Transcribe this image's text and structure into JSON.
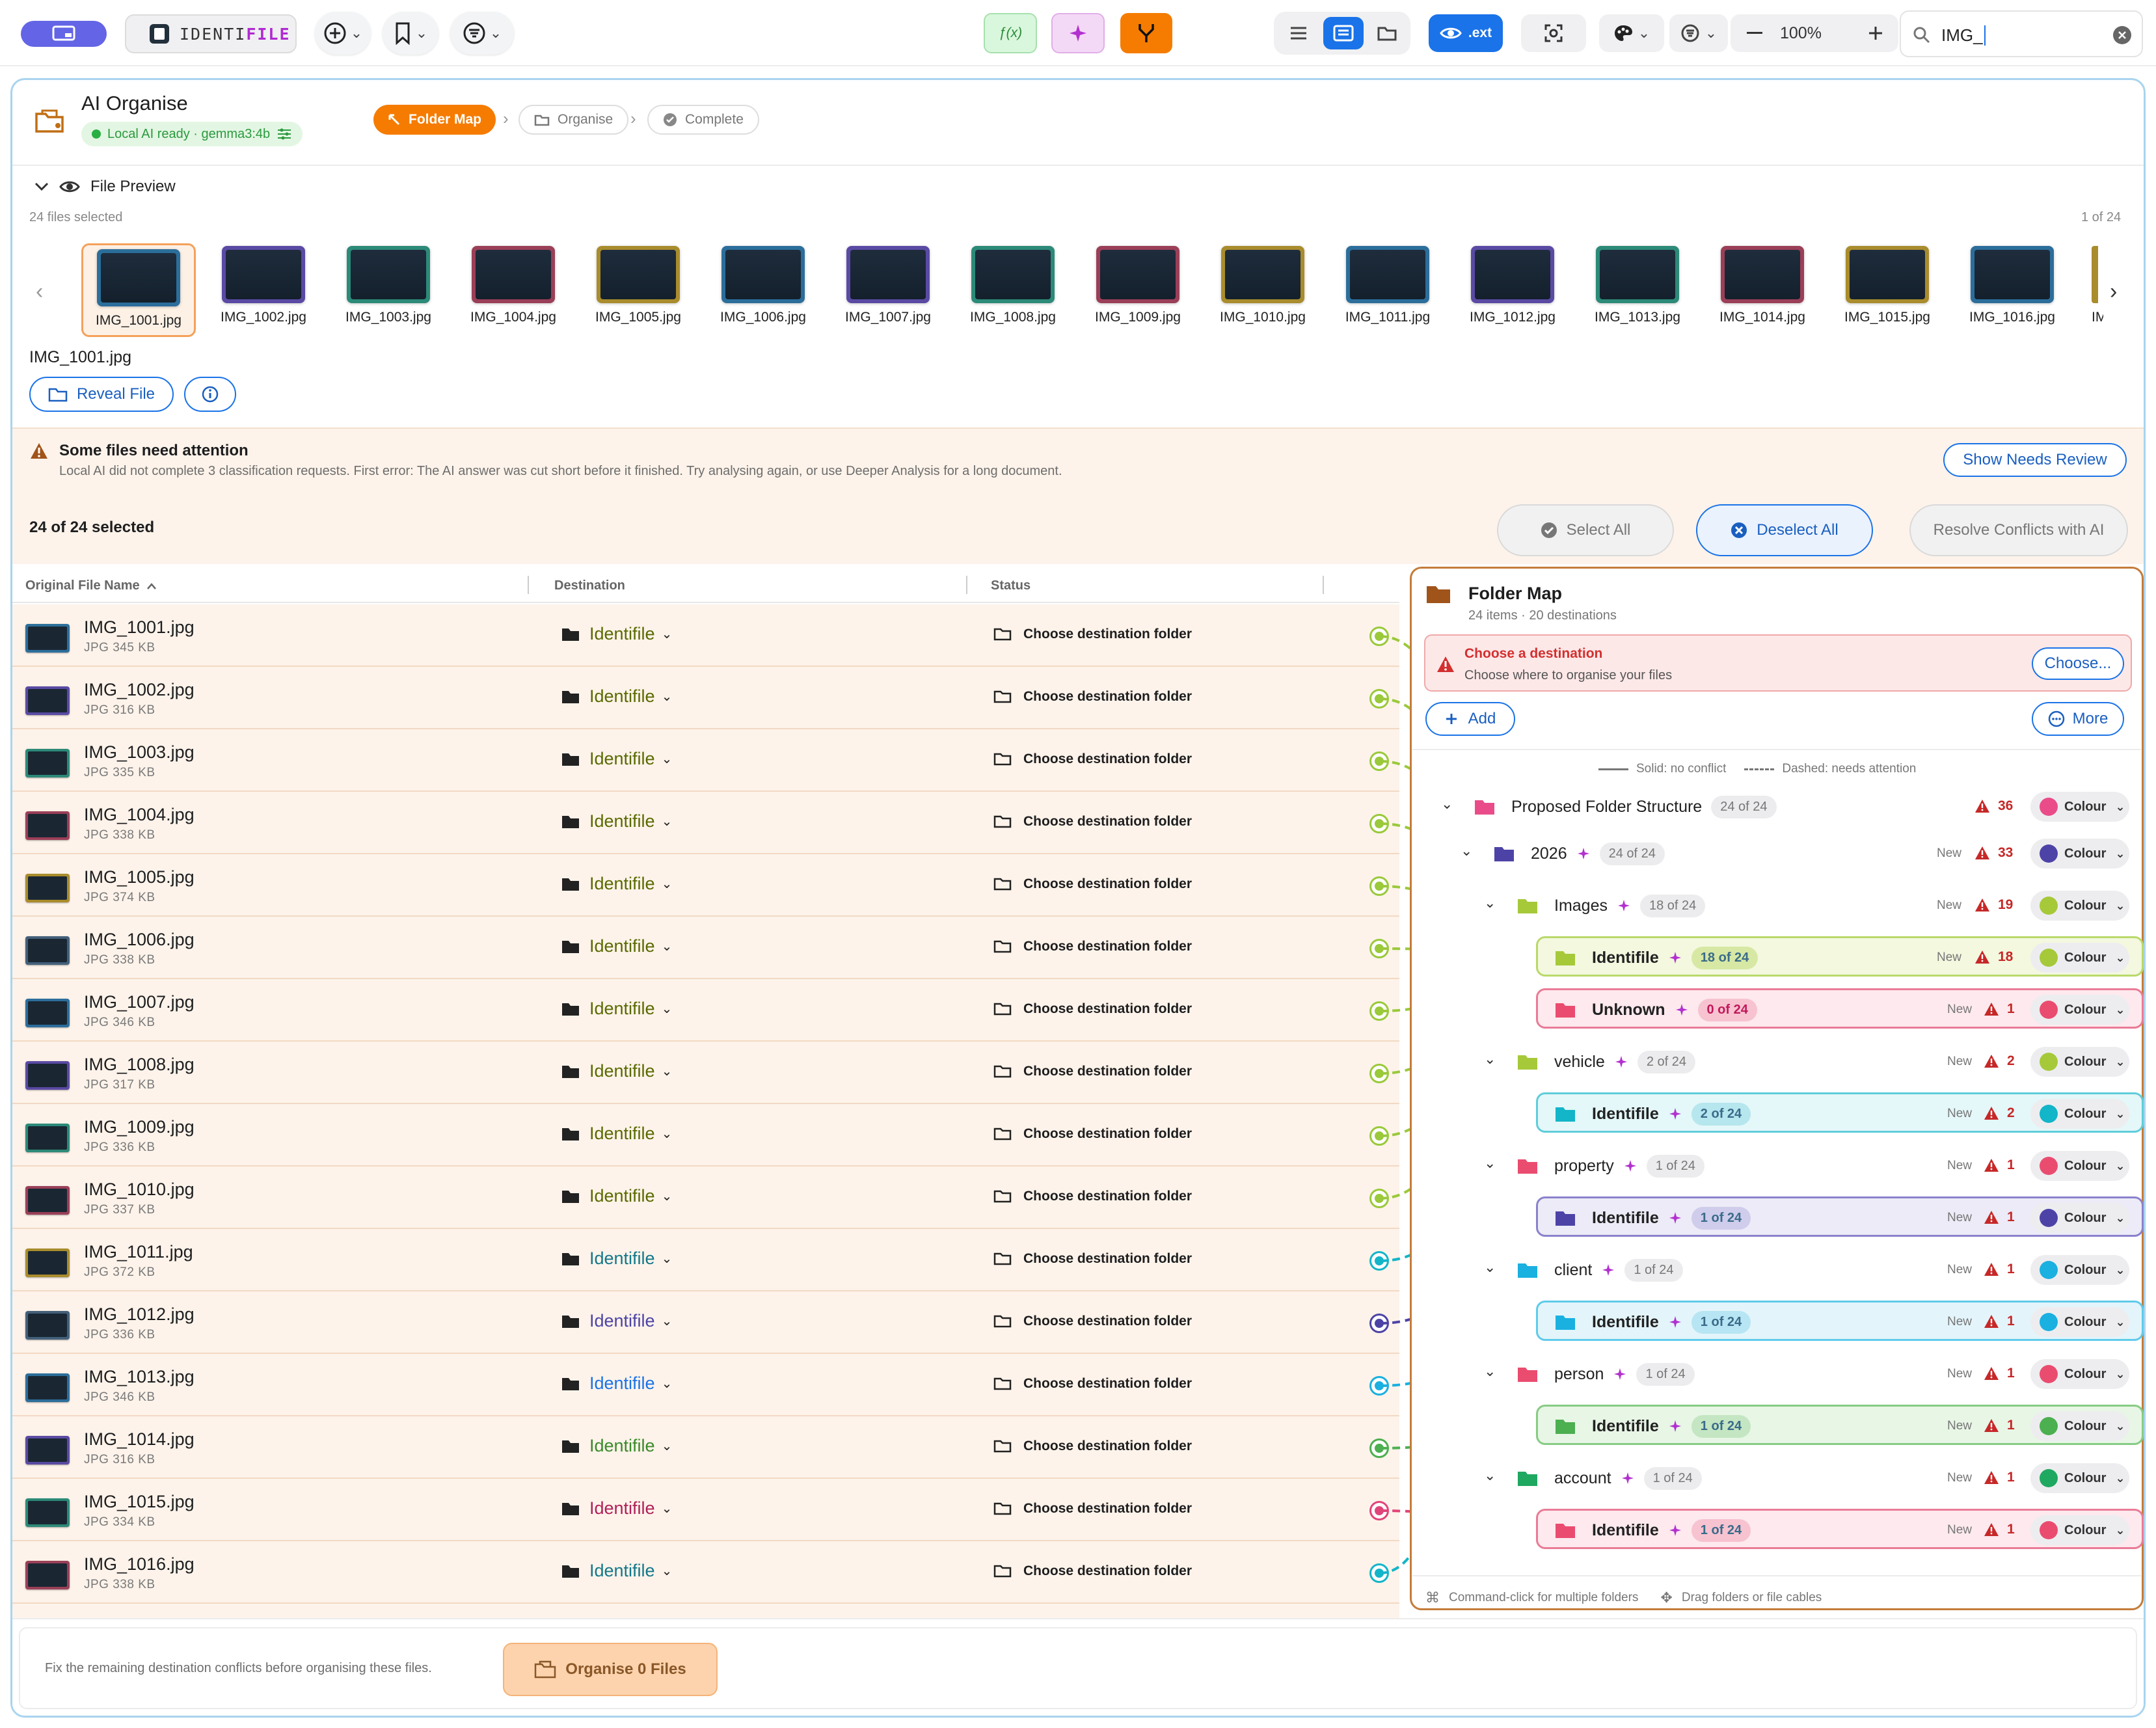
{
  "toolbar": {
    "app_name_part1": "IDENTI",
    "app_name_part2": "FILE",
    "fx_label": "ƒ(x)",
    "ext_label": ".ext",
    "zoom": "100%",
    "search_value": "IMG_",
    "colors": {
      "accent": "#1a73e8",
      "merge": "#f57c00",
      "fx_bg": "#d9f7dc",
      "sparkle_bg": "#f4d9f7"
    }
  },
  "header": {
    "title": "AI Organise",
    "status": "Local AI ready · gemma3:4b",
    "steps": [
      "Folder Map",
      "Organise",
      "Complete"
    ]
  },
  "preview": {
    "toggle_label": "File Preview",
    "selected_count": "24 files selected",
    "position": "1 of 24",
    "thumbs": [
      "IMG_1001.jpg",
      "IMG_1002.jpg",
      "IMG_1003.jpg",
      "IMG_1004.jpg",
      "IMG_1005.jpg",
      "IMG_1006.jpg",
      "IMG_1007.jpg",
      "IMG_1008.jpg",
      "IMG_1009.jpg",
      "IMG_1010.jpg",
      "IMG_1011.jpg",
      "IMG_1012.jpg",
      "IMG_1013.jpg",
      "IMG_1014.jpg",
      "IMG_1015.jpg",
      "IMG_1016.jpg"
    ],
    "thumb_partial": "IM",
    "current_file": "IMG_1001.jpg",
    "reveal_label": "Reveal File"
  },
  "alert": {
    "title": "Some files need attention",
    "message": "Local AI did not complete 3 classification requests. First error: The AI answer was cut short before it finished. Try analysing again, or use Deeper Analysis for a long document.",
    "button": "Show Needs Review"
  },
  "selection": {
    "count": "24 of 24 selected",
    "select_all": "Select All",
    "deselect_all": "Deselect All",
    "resolve": "Resolve Conflicts with AI"
  },
  "table": {
    "headers": [
      "Original File Name",
      "Destination",
      "Status"
    ],
    "rows": [
      {
        "name": "IMG_1001.jpg",
        "meta": "JPG  345 KB",
        "dest": "Identifile",
        "status": "Choose destination folder"
      },
      {
        "name": "IMG_1002.jpg",
        "meta": "JPG  316 KB",
        "dest": "Identifile",
        "status": "Choose destination folder"
      },
      {
        "name": "IMG_1003.jpg",
        "meta": "JPG  335 KB",
        "dest": "Identifile",
        "status": "Choose destination folder"
      },
      {
        "name": "IMG_1004.jpg",
        "meta": "JPG  338 KB",
        "dest": "Identifile",
        "status": "Choose destination folder"
      },
      {
        "name": "IMG_1005.jpg",
        "meta": "JPG  374 KB",
        "dest": "Identifile",
        "status": "Choose destination folder"
      },
      {
        "name": "IMG_1006.jpg",
        "meta": "JPG  338 KB",
        "dest": "Identifile",
        "status": "Choose destination folder"
      },
      {
        "name": "IMG_1007.jpg",
        "meta": "JPG  346 KB",
        "dest": "Identifile",
        "status": "Choose destination folder"
      },
      {
        "name": "IMG_1008.jpg",
        "meta": "JPG  317 KB",
        "dest": "Identifile",
        "status": "Choose destination folder"
      },
      {
        "name": "IMG_1009.jpg",
        "meta": "JPG  336 KB",
        "dest": "Identifile",
        "status": "Choose destination folder"
      },
      {
        "name": "IMG_1010.jpg",
        "meta": "JPG  337 KB",
        "dest": "Identifile",
        "status": "Choose destination folder"
      },
      {
        "name": "IMG_1011.jpg",
        "meta": "JPG  372 KB",
        "dest": "Identifile",
        "status": "Choose destination folder"
      },
      {
        "name": "IMG_1012.jpg",
        "meta": "JPG  336 KB",
        "dest": "Identifile",
        "status": "Choose destination folder"
      },
      {
        "name": "IMG_1013.jpg",
        "meta": "JPG  346 KB",
        "dest": "Identifile",
        "status": "Choose destination folder"
      },
      {
        "name": "IMG_1014.jpg",
        "meta": "JPG  316 KB",
        "dest": "Identifile",
        "status": "Choose destination folder"
      },
      {
        "name": "IMG_1015.jpg",
        "meta": "JPG  334 KB",
        "dest": "Identifile",
        "status": "Choose destination folder"
      },
      {
        "name": "IMG_1016.jpg",
        "meta": "JPG  338 KB",
        "dest": "Identifile",
        "status": "Choose destination folder"
      }
    ]
  },
  "folder_map": {
    "title": "Folder Map",
    "subtitle": "24 items · 20 destinations",
    "error_title": "Choose a destination",
    "error_message": "Choose where to organise your files",
    "choose_label": "Choose...",
    "add_label": "Add",
    "more_label": "More",
    "legend_solid": "Solid: no conflict",
    "legend_dashed": "Dashed: needs attention",
    "tree": [
      {
        "label": "Proposed Folder Structure",
        "count": "24 of 24",
        "new": "",
        "warn": "36"
      },
      {
        "label": "2026",
        "count": "24 of 24",
        "new": "New",
        "warn": "33"
      },
      {
        "label": "Images",
        "count": "18 of 24",
        "new": "New",
        "warn": "19"
      },
      {
        "label": "Identifile",
        "count": "18 of 24",
        "new": "New",
        "warn": "18"
      },
      {
        "label": "Unknown",
        "count": "0 of 24",
        "new": "New",
        "warn": "1"
      },
      {
        "label": "vehicle",
        "count": "2 of 24",
        "new": "New",
        "warn": "2"
      },
      {
        "label": "Identifile",
        "count": "2 of 24",
        "new": "New",
        "warn": "2"
      },
      {
        "label": "property",
        "count": "1 of 24",
        "new": "New",
        "warn": "1"
      },
      {
        "label": "Identifile",
        "count": "1 of 24",
        "new": "New",
        "warn": "1"
      },
      {
        "label": "client",
        "count": "1 of 24",
        "new": "New",
        "warn": "1"
      },
      {
        "label": "Identifile",
        "count": "1 of 24",
        "new": "New",
        "warn": "1"
      },
      {
        "label": "person",
        "count": "1 of 24",
        "new": "New",
        "warn": "1"
      },
      {
        "label": "Identifile",
        "count": "1 of 24",
        "new": "New",
        "warn": "1"
      },
      {
        "label": "account",
        "count": "1 of 24",
        "new": "New",
        "warn": "1"
      },
      {
        "label": "Identifile",
        "count": "1 of 24",
        "new": "New",
        "warn": "1"
      }
    ],
    "colour_label": "Colour",
    "hint_multi": "Command-click for multiple folders",
    "hint_drag": "Drag folders or file cables"
  },
  "footer": {
    "message": "Fix the remaining destination conflicts before organising these files.",
    "button": "Organise 0 Files"
  }
}
